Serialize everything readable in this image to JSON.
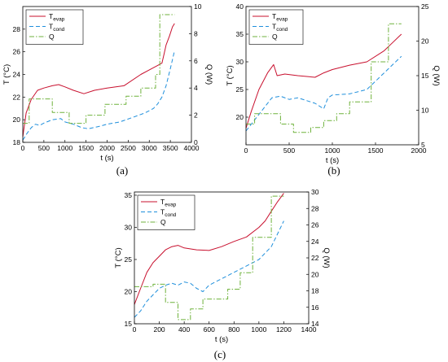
{
  "figure": {
    "panels": [
      "(a)",
      "(b)",
      "(c)"
    ]
  },
  "colors": {
    "T_evap": "#c8102e",
    "T_cond": "#1f8fdc",
    "Q": "#6fb23c"
  },
  "chart_data": [
    {
      "type": "line",
      "panel": "(a)",
      "xlabel": "t (s)",
      "ylabel_left": "T (°C)",
      "ylabel_right": "Q (W)",
      "xlim": [
        0,
        4000
      ],
      "ylim_left": [
        18,
        30
      ],
      "ylim_right": [
        0,
        10
      ],
      "xticks": [
        0,
        500,
        1000,
        1500,
        2000,
        2500,
        3000,
        3500,
        4000
      ],
      "yticks_left": [
        18,
        20,
        22,
        24,
        26,
        28
      ],
      "yticks_right": [
        0,
        2,
        4,
        6,
        8,
        10
      ],
      "legend": {
        "position": "top-left",
        "entries": [
          {
            "series": "T_evap",
            "base": "T",
            "sub": "evap"
          },
          {
            "series": "T_cond",
            "base": "T",
            "sub": "cond"
          },
          {
            "series": "Q",
            "base": "Q",
            "sub": ""
          }
        ]
      },
      "series": [
        {
          "name": "T_evap",
          "axis": "left",
          "style": "solid",
          "x": [
            0,
            80,
            200,
            350,
            500,
            700,
            850,
            1000,
            1200,
            1450,
            1700,
            2000,
            2400,
            2800,
            3000,
            3200,
            3300,
            3350,
            3400,
            3480,
            3550,
            3600
          ],
          "y": [
            18.5,
            20.6,
            21.8,
            22.6,
            22.8,
            23.0,
            23.1,
            22.9,
            22.6,
            22.3,
            22.6,
            22.8,
            23.0,
            24.0,
            24.4,
            24.8,
            25.0,
            25.8,
            26.6,
            27.4,
            28.2,
            28.5
          ]
        },
        {
          "name": "T_cond",
          "axis": "left",
          "style": "dashed",
          "x": [
            0,
            100,
            200,
            300,
            400,
            500,
            700,
            900,
            1000,
            1200,
            1400,
            1550,
            1800,
            2000,
            2300,
            2600,
            2900,
            3100,
            3200,
            3300,
            3400,
            3500,
            3600
          ],
          "y": [
            18.2,
            18.8,
            19.3,
            19.6,
            19.5,
            19.7,
            20.0,
            20.1,
            19.8,
            19.6,
            19.3,
            19.2,
            19.4,
            19.6,
            19.8,
            20.2,
            20.6,
            21.0,
            21.4,
            22.0,
            23.0,
            24.5,
            26.1
          ]
        },
        {
          "name": "Q",
          "axis": "right",
          "style": "dashdot",
          "step": true,
          "x": [
            0,
            150,
            150,
            700,
            700,
            1100,
            1100,
            1500,
            1500,
            1950,
            1950,
            2450,
            2450,
            2800,
            2800,
            3150,
            3150,
            3250,
            3250,
            3600
          ],
          "y": [
            1.4,
            1.4,
            3.2,
            3.2,
            2.2,
            2.2,
            1.4,
            1.4,
            2.0,
            2.0,
            2.8,
            2.8,
            3.4,
            3.4,
            4.0,
            4.0,
            5.0,
            5.0,
            9.4,
            9.4
          ]
        }
      ]
    },
    {
      "type": "line",
      "panel": "(b)",
      "xlabel": "t (s)",
      "ylabel_left": "T (°C)",
      "ylabel_right": "Q (W)",
      "xlim": [
        0,
        2000
      ],
      "ylim_left": [
        15,
        40
      ],
      "ylim_right": [
        5,
        25
      ],
      "xticks": [
        0,
        500,
        1000,
        1500,
        2000
      ],
      "yticks_left": [
        20,
        25,
        30,
        35,
        40
      ],
      "yticks_right": [
        5,
        10,
        15,
        20,
        25
      ],
      "legend": {
        "position": "top-left",
        "entries": [
          {
            "series": "T_evap",
            "base": "T",
            "sub": "evap"
          },
          {
            "series": "T_cond",
            "base": "T",
            "sub": "cond"
          },
          {
            "series": "Q",
            "base": "Q",
            "sub": ""
          }
        ]
      },
      "series": [
        {
          "name": "T_evap",
          "axis": "left",
          "style": "solid",
          "x": [
            0,
            60,
            150,
            250,
            320,
            360,
            450,
            600,
            800,
            900,
            1000,
            1200,
            1400,
            1600,
            1700,
            1800
          ],
          "y": [
            18.0,
            21.0,
            25.0,
            28.0,
            29.5,
            27.5,
            27.8,
            27.5,
            27.2,
            28.0,
            28.6,
            29.4,
            30.0,
            32.0,
            33.5,
            35.0
          ]
        },
        {
          "name": "T_cond",
          "axis": "left",
          "style": "dashed",
          "x": [
            0,
            100,
            200,
            300,
            400,
            500,
            600,
            700,
            800,
            900,
            950,
            1000,
            1200,
            1400,
            1500,
            1600,
            1700,
            1800
          ],
          "y": [
            17.5,
            19.5,
            21.5,
            23.5,
            23.8,
            23.2,
            23.5,
            23.0,
            22.5,
            21.5,
            23.5,
            24.0,
            24.2,
            25.0,
            26.5,
            28.0,
            29.5,
            31.0
          ]
        },
        {
          "name": "Q",
          "axis": "right",
          "style": "dashdot",
          "step": true,
          "x": [
            0,
            100,
            100,
            400,
            400,
            550,
            550,
            750,
            750,
            900,
            900,
            1050,
            1050,
            1200,
            1200,
            1450,
            1450,
            1650,
            1650,
            1800
          ],
          "y": [
            8.0,
            8.0,
            9.5,
            9.5,
            8.0,
            8.0,
            6.8,
            6.8,
            7.5,
            7.5,
            8.5,
            8.5,
            9.5,
            9.5,
            11.2,
            11.2,
            17.0,
            17.0,
            22.5,
            22.5
          ]
        }
      ]
    },
    {
      "type": "line",
      "panel": "(c)",
      "xlabel": "t (s)",
      "ylabel_left": "T (°C)",
      "ylabel_right": "Q (W)",
      "xlim": [
        0,
        1400
      ],
      "ylim_left": [
        15,
        35.5
      ],
      "ylim_right": [
        14,
        30
      ],
      "xticks": [
        0,
        200,
        400,
        600,
        800,
        1000,
        1200,
        1400
      ],
      "yticks_left": [
        15,
        20,
        25,
        30,
        35
      ],
      "yticks_right": [
        14,
        16,
        18,
        20,
        22,
        24,
        26,
        28,
        30
      ],
      "legend": {
        "position": "top-left",
        "entries": [
          {
            "series": "T_evap",
            "base": "T",
            "sub": "evap"
          },
          {
            "series": "T_cond",
            "base": "T",
            "sub": "cond"
          },
          {
            "series": "Q",
            "base": "Q",
            "sub": ""
          }
        ]
      },
      "series": [
        {
          "name": "T_evap",
          "axis": "left",
          "style": "solid",
          "x": [
            0,
            50,
            100,
            150,
            200,
            250,
            300,
            350,
            400,
            500,
            600,
            700,
            800,
            900,
            1000,
            1050,
            1100,
            1150,
            1200
          ],
          "y": [
            18.0,
            20.5,
            23.0,
            24.5,
            25.5,
            26.5,
            27.0,
            27.2,
            26.8,
            26.5,
            26.4,
            27.0,
            27.8,
            28.5,
            30.0,
            31.0,
            32.5,
            34.0,
            35.3
          ]
        },
        {
          "name": "T_cond",
          "axis": "left",
          "style": "dashed",
          "x": [
            0,
            50,
            100,
            150,
            200,
            250,
            300,
            350,
            400,
            450,
            500,
            550,
            600,
            700,
            800,
            900,
            1000,
            1100,
            1150,
            1200
          ],
          "y": [
            16.0,
            17.0,
            18.5,
            19.5,
            20.5,
            21.0,
            21.3,
            21.0,
            21.5,
            21.3,
            20.5,
            20.0,
            21.0,
            22.0,
            23.0,
            24.0,
            25.0,
            27.0,
            29.0,
            31.0
          ]
        },
        {
          "name": "Q",
          "axis": "right",
          "style": "dashdot",
          "step": true,
          "x": [
            0,
            150,
            150,
            250,
            250,
            350,
            350,
            450,
            450,
            550,
            550,
            650,
            650,
            750,
            750,
            850,
            850,
            950,
            950,
            1050,
            1050,
            1100,
            1100,
            1200
          ],
          "y": [
            18.5,
            18.5,
            18.8,
            18.8,
            16.6,
            16.6,
            14.5,
            14.5,
            15.8,
            15.8,
            17.0,
            17.0,
            17.0,
            17.0,
            18.2,
            18.2,
            20.2,
            20.2,
            24.5,
            24.5,
            24.5,
            24.5,
            29.5,
            29.5
          ]
        }
      ]
    }
  ]
}
